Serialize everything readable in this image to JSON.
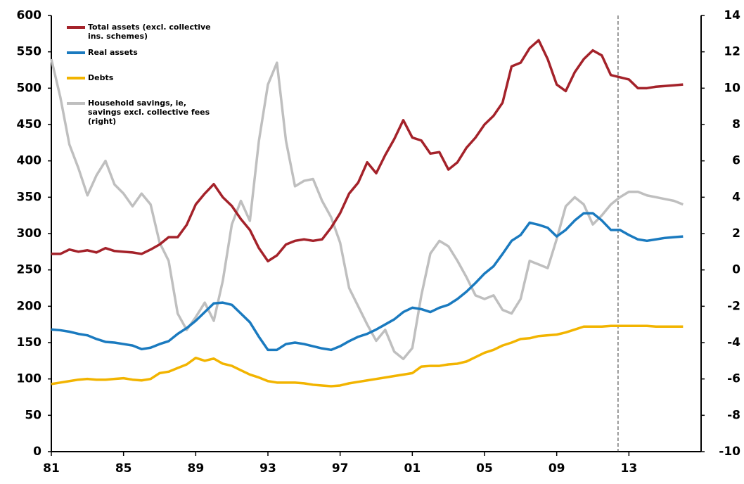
{
  "chart_data": {
    "type": "line",
    "x": [
      1981,
      1981.5,
      1982,
      1982.5,
      1983,
      1983.5,
      1984,
      1984.5,
      1985,
      1985.5,
      1986,
      1986.5,
      1987,
      1987.5,
      1988,
      1988.5,
      1989,
      1989.5,
      1990,
      1990.5,
      1991,
      1991.5,
      1992,
      1992.5,
      1993,
      1993.5,
      1994,
      1994.5,
      1995,
      1995.5,
      1996,
      1996.5,
      1997,
      1997.5,
      1998,
      1998.5,
      1999,
      1999.5,
      2000,
      2000.5,
      2001,
      2001.5,
      2002,
      2002.5,
      2003,
      2003.5,
      2004,
      2004.5,
      2005,
      2005.5,
      2006,
      2006.5,
      2007,
      2007.5,
      2008,
      2008.5,
      2009,
      2009.5,
      2010,
      2010.5,
      2011,
      2011.5,
      2012,
      2012.5,
      2013,
      2013.5,
      2014,
      2014.5,
      2015,
      2015.5,
      2016
    ],
    "series": [
      {
        "name": "Total assets (excl. collective ins. schemes)",
        "color": "#a4222a",
        "values": [
          272,
          272,
          278,
          275,
          277,
          274,
          280,
          276,
          275,
          274,
          272,
          278,
          285,
          295,
          295,
          312,
          340,
          355,
          368,
          350,
          338,
          320,
          305,
          280,
          262,
          270,
          285,
          290,
          292,
          290,
          292,
          308,
          328,
          355,
          370,
          398,
          383,
          408,
          430,
          456,
          432,
          428,
          410,
          412,
          388,
          398,
          418,
          432,
          450,
          462,
          480,
          530,
          535,
          555,
          566,
          540,
          505,
          496,
          522,
          540,
          552,
          545,
          518,
          515,
          512,
          500,
          500,
          502,
          503,
          504,
          505
        ]
      },
      {
        "name": "Real assets",
        "color": "#1a7abf",
        "values": [
          168,
          167,
          165,
          162,
          160,
          155,
          151,
          150,
          148,
          146,
          141,
          143,
          148,
          152,
          162,
          170,
          180,
          192,
          204,
          205,
          202,
          190,
          178,
          158,
          140,
          140,
          148,
          150,
          148,
          145,
          142,
          140,
          145,
          152,
          158,
          162,
          168,
          175,
          182,
          192,
          198,
          196,
          192,
          198,
          202,
          210,
          220,
          232,
          245,
          255,
          272,
          290,
          298,
          315,
          312,
          308,
          296,
          305,
          318,
          328,
          328,
          318,
          305,
          305,
          298,
          292,
          290,
          292,
          294,
          295,
          296
        ]
      },
      {
        "name": "Debts",
        "color": "#f2b400",
        "values": [
          93,
          95,
          97,
          99,
          100,
          99,
          99,
          100,
          101,
          99,
          98,
          100,
          108,
          110,
          115,
          120,
          129,
          125,
          128,
          121,
          118,
          112,
          106,
          102,
          97,
          95,
          95,
          95,
          94,
          92,
          91,
          90,
          91,
          94,
          96,
          98,
          100,
          102,
          104,
          106,
          108,
          117,
          118,
          118,
          120,
          121,
          124,
          130,
          136,
          140,
          146,
          150,
          155,
          156,
          159,
          160,
          161,
          164,
          168,
          172,
          172,
          172,
          173,
          173,
          173,
          173,
          173,
          172,
          172,
          172,
          172
        ]
      },
      {
        "name": "Household savings, ie, savings excl. collective fees (right)",
        "color": "#bfbfbf",
        "axis": "y2",
        "values": [
          11.6,
          9.5,
          6.9,
          5.6,
          4.1,
          5.2,
          6.0,
          4.7,
          4.2,
          3.5,
          4.2,
          3.6,
          1.5,
          0.5,
          -2.4,
          -3.3,
          -2.6,
          -1.8,
          -2.8,
          -0.6,
          2.5,
          3.8,
          2.7,
          7.1,
          10.2,
          11.4,
          7.1,
          4.6,
          4.9,
          5.0,
          3.8,
          2.9,
          1.5,
          -1.0,
          -2.0,
          -3.0,
          -3.9,
          -3.3,
          -4.5,
          -4.9,
          -4.3,
          -1.4,
          0.9,
          1.6,
          1.3,
          0.5,
          -0.4,
          -1.4,
          -1.6,
          -1.4,
          -2.2,
          -2.4,
          -1.6,
          0.5,
          0.3,
          0.1,
          1.7,
          3.5,
          4.0,
          3.6,
          2.5,
          3.0,
          3.6,
          4.0,
          4.3,
          4.3,
          4.1,
          4.0,
          3.9,
          3.8,
          3.6
        ]
      }
    ],
    "xlim": [
      1981,
      2017
    ],
    "xticks": [
      {
        "value": 1981,
        "label": "81"
      },
      {
        "value": 1985,
        "label": "85"
      },
      {
        "value": 1989,
        "label": "89"
      },
      {
        "value": 1993,
        "label": "93"
      },
      {
        "value": 1997,
        "label": "97"
      },
      {
        "value": 2001,
        "label": "01"
      },
      {
        "value": 2005,
        "label": "05"
      },
      {
        "value": 2009,
        "label": "09"
      },
      {
        "value": 2013,
        "label": "13"
      }
    ],
    "ylim": [
      0,
      600
    ],
    "yticks": [
      0,
      50,
      100,
      150,
      200,
      250,
      300,
      350,
      400,
      450,
      500,
      550,
      600
    ],
    "y2lim": [
      -10,
      14
    ],
    "y2ticks": [
      -10,
      -8,
      -6,
      -4,
      -2,
      0,
      2,
      4,
      6,
      8,
      10,
      12,
      14
    ],
    "vline": 2012.4,
    "legend": "upper-left"
  }
}
